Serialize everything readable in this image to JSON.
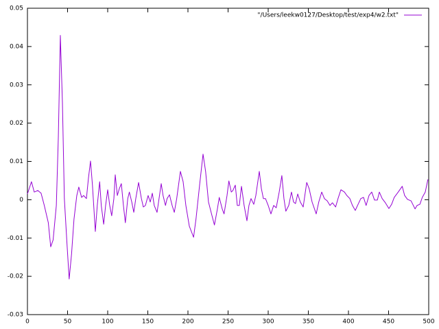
{
  "chart_data": {
    "type": "line",
    "x": [
      0,
      5,
      8.5,
      13,
      17,
      21,
      26,
      29,
      32,
      36,
      38.5,
      41,
      43.6,
      46,
      49.5,
      52,
      55,
      58,
      61.5,
      64,
      67.5,
      70,
      73.5,
      76,
      78.6,
      81,
      84.6,
      87,
      90,
      92,
      95,
      97.4,
      100,
      102.5,
      105,
      107.7,
      109.4,
      112,
      114.5,
      117,
      119.6,
      122,
      125,
      127,
      130,
      132.5,
      135,
      138.5,
      142,
      144.4,
      147,
      150.4,
      153,
      155.6,
      158,
      161.5,
      164,
      166.7,
      169,
      172,
      174,
      177,
      180.3,
      183,
      186,
      190.6,
      194,
      197.4,
      201.7,
      207,
      210,
      214.5,
      218.8,
      222,
      225.6,
      230,
      233,
      236.7,
      239,
      242.7,
      245,
      248.7,
      251,
      254,
      256,
      259,
      261.5,
      264,
      266.7,
      270,
      273.5,
      276,
      278.6,
      282,
      284.6,
      288.9,
      291.5,
      294,
      296.6,
      300,
      303.4,
      306.8,
      310,
      313.7,
      317,
      319.6,
      322,
      325.6,
      329,
      331.6,
      334,
      336.8,
      340,
      343.6,
      348,
      351,
      354.7,
      359.8,
      363,
      366.7,
      370,
      373.5,
      377,
      380,
      384,
      387,
      390.6,
      395,
      398,
      401.7,
      405,
      408.5,
      412,
      415.4,
      418.8,
      422,
      425.6,
      429,
      432.5,
      436,
      438.5,
      442,
      446,
      450.4,
      453.8,
      457,
      462,
      467,
      470,
      473.5,
      478,
      483,
      485.5,
      489,
      492,
      495.7,
      499
    ],
    "series": [
      {
        "name": "\"/Users/leekw0127/Desktop/test/exp4/w2.txt\"",
        "color": "#9400d3",
        "values": [
          0.0015,
          0.0047,
          0.002,
          0.0024,
          0.0017,
          -0.0015,
          -0.006,
          -0.0123,
          -0.0105,
          -0.0015,
          0.0164,
          0.0429,
          0.0253,
          0.0003,
          -0.0123,
          -0.0207,
          -0.0141,
          -0.0051,
          0.0011,
          0.0033,
          0.0006,
          0.0011,
          0.0003,
          0.0056,
          0.0101,
          0.0038,
          -0.0083,
          -0.0015,
          0.0047,
          -0.0015,
          -0.0064,
          -0.0015,
          0.0026,
          -0.0015,
          -0.0042,
          0.0003,
          0.0065,
          0.0011,
          0.0029,
          0.0042,
          -0.0015,
          -0.006,
          0.0003,
          0.002,
          -0.0006,
          -0.0033,
          0.0003,
          0.0045,
          0.0003,
          -0.0019,
          -0.0015,
          0.0011,
          -0.0006,
          0.0017,
          -0.0015,
          -0.0033,
          0.0003,
          0.0042,
          0.0011,
          -0.0015,
          0.0003,
          0.0013,
          -0.0015,
          -0.0033,
          0.0003,
          0.0074,
          0.0047,
          -0.0015,
          -0.0069,
          -0.0098,
          -0.0051,
          0.0038,
          0.0119,
          0.0074,
          -0.0006,
          -0.0042,
          -0.0066,
          -0.0024,
          0.0006,
          -0.0024,
          -0.0037,
          0.0011,
          0.0049,
          0.002,
          0.0024,
          0.0038,
          -0.0015,
          -0.0015,
          0.0035,
          -0.0015,
          -0.0055,
          -0.0015,
          0.0003,
          -0.0012,
          0.0011,
          0.0074,
          0.0029,
          0.0003,
          0.0003,
          -0.0015,
          -0.0037,
          -0.0015,
          -0.0021,
          0.002,
          0.0063,
          0.0003,
          -0.003,
          -0.0015,
          0.002,
          -0.0006,
          -0.001,
          0.0015,
          -0.0006,
          -0.0019,
          0.0045,
          0.0029,
          -0.0006,
          -0.0037,
          -0.0006,
          0.002,
          0.0003,
          -0.0003,
          -0.0015,
          -0.0008,
          -0.0019,
          0.0003,
          0.0026,
          0.002,
          0.0011,
          0.0003,
          -0.0015,
          -0.0028,
          -0.0012,
          0.0003,
          0.0006,
          -0.0015,
          0.0011,
          0.002,
          -0.0001,
          -0.0001,
          0.002,
          0.0003,
          -0.0008,
          -0.0023,
          -0.0012,
          0.0006,
          0.002,
          0.0035,
          0.0011,
          0.0001,
          -0.0003,
          -0.0024,
          -0.0015,
          -0.0012,
          0.0006,
          0.002,
          0.0053
        ]
      }
    ],
    "xlim": [
      0,
      500
    ],
    "xticks": [
      0,
      50,
      100,
      150,
      200,
      250,
      300,
      350,
      400,
      450,
      500
    ],
    "ylim": [
      -0.03,
      0.05
    ],
    "yticks": [
      -0.03,
      -0.02,
      -0.01,
      0,
      0.01,
      0.02,
      0.03,
      0.04,
      0.05
    ],
    "grid": false,
    "legend": "top-right"
  }
}
